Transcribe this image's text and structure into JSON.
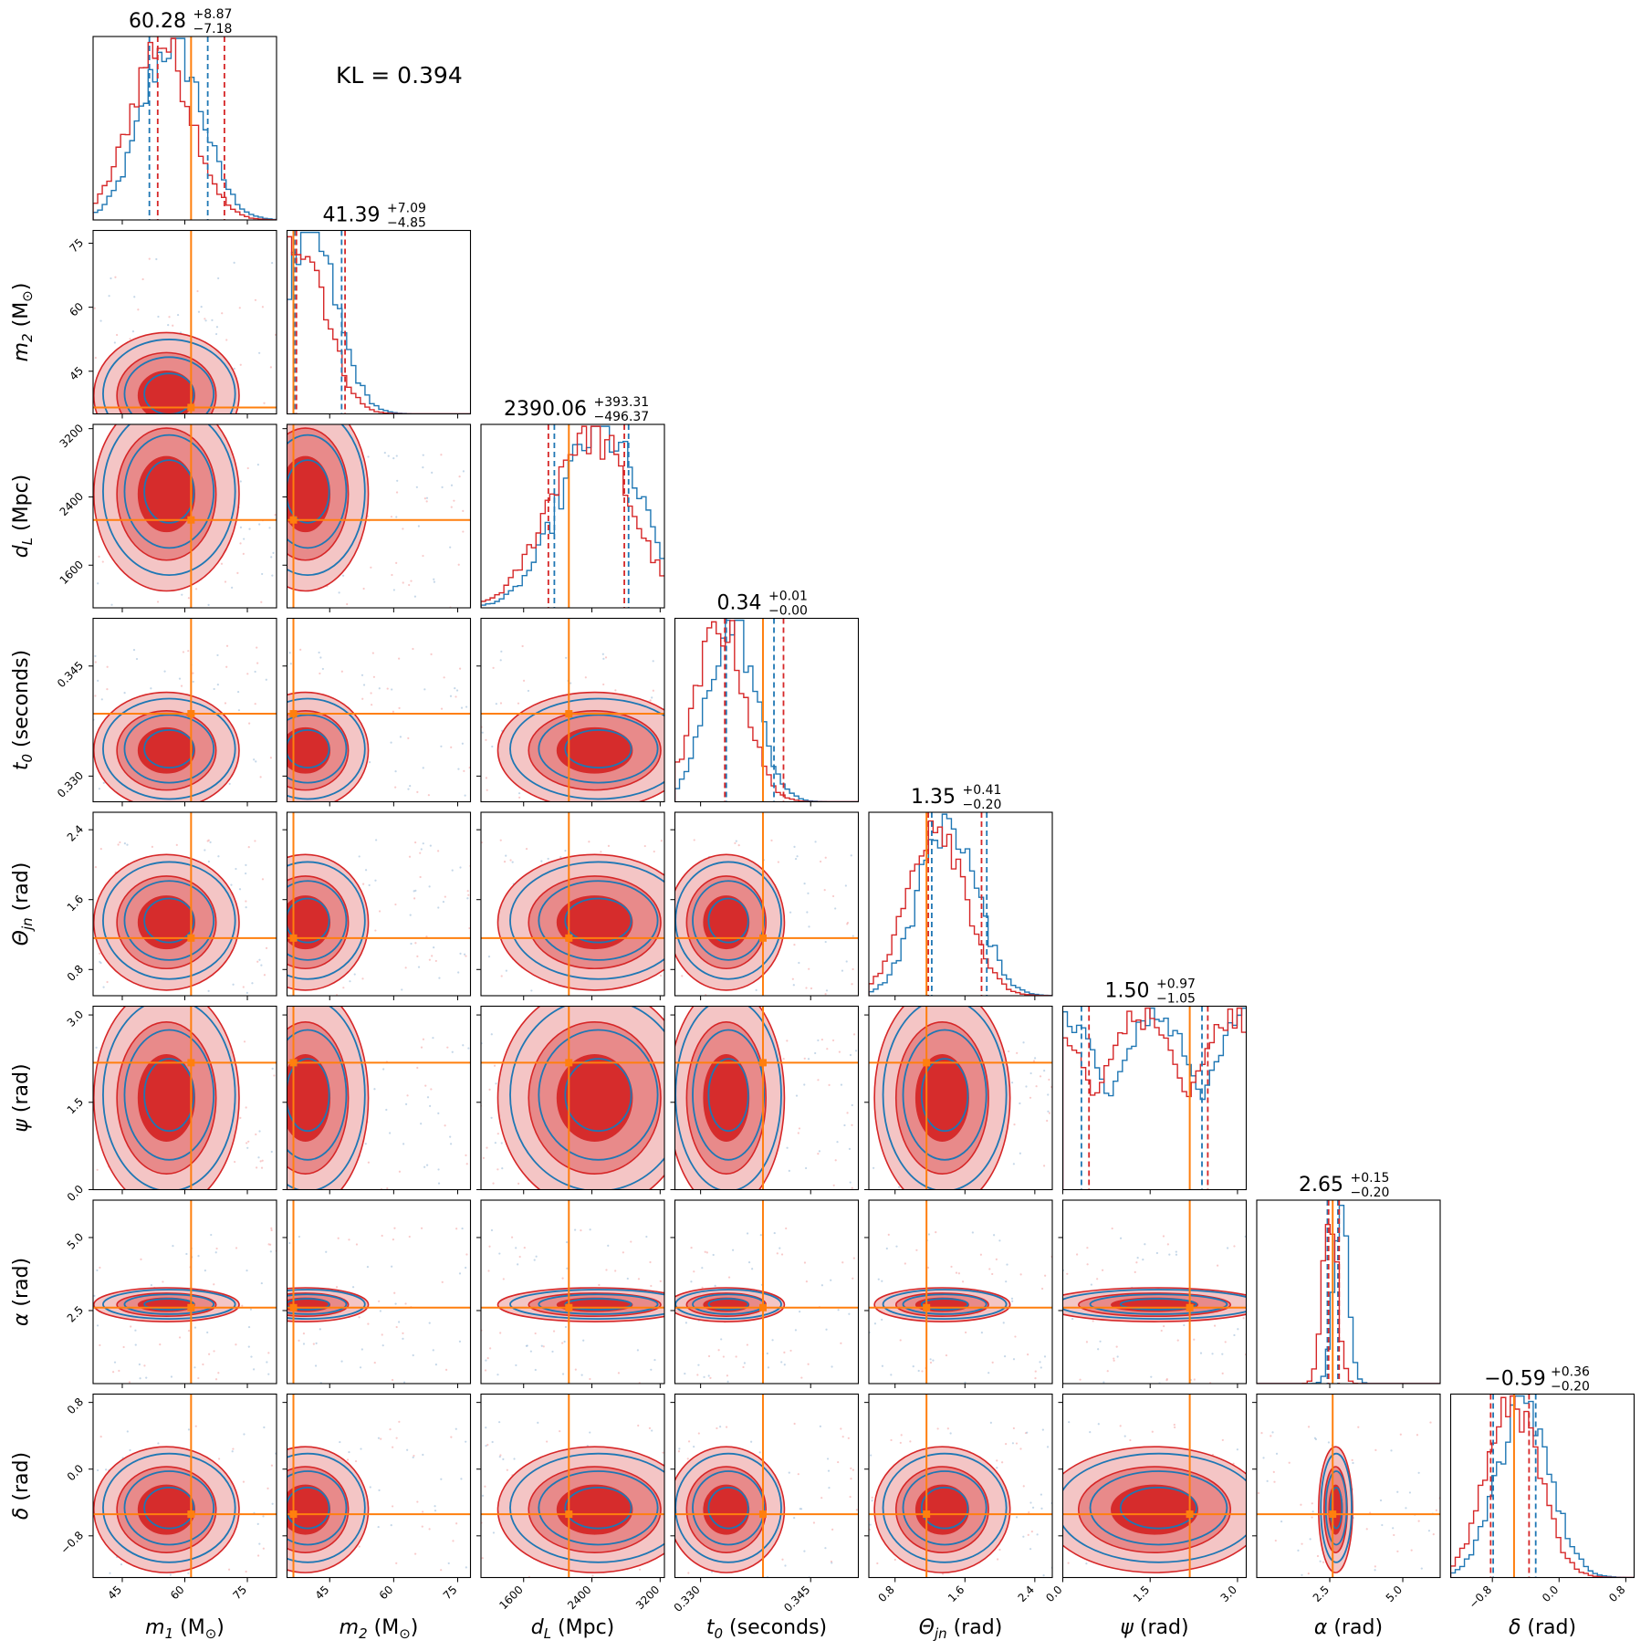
{
  "kl_text": "KL = 0.394",
  "colors": {
    "sample_a": "#1f77b4",
    "sample_b": "#d62728",
    "truth": "#ff7f0e"
  },
  "chart_data": {
    "type": "corner",
    "params": [
      {
        "key": "m1",
        "label_main": "m",
        "label_sub": "1",
        "label_unit": " (M",
        "label_unit_sub": "⊙",
        "label_tail": ")",
        "range": [
          38,
          82
        ],
        "ticks": [
          45,
          60,
          75
        ],
        "tick_labels": [
          "45",
          "60",
          "75"
        ],
        "truth": 61.5,
        "title_value": "60.28",
        "title_plus": "+8.87",
        "title_minus": "−7.18",
        "q_a": [
          51.5,
          65.5
        ],
        "q_b": [
          53.5,
          69.5
        ]
      },
      {
        "key": "m2",
        "label_main": "m",
        "label_sub": "2",
        "label_unit": " (M",
        "label_unit_sub": "⊙",
        "label_tail": ")",
        "range": [
          35,
          78
        ],
        "ticks": [
          45,
          60,
          75
        ],
        "tick_labels": [
          "45",
          "60",
          "75"
        ],
        "truth": 36.5,
        "title_value": "41.39",
        "title_plus": "+7.09",
        "title_minus": "−4.85",
        "q_a": [
          36.8,
          47.8
        ],
        "q_b": [
          37.2,
          48.6
        ]
      },
      {
        "key": "dl",
        "label_main": "d",
        "label_sub": "L",
        "label_unit": " (Mpc)",
        "label_unit_sub": "",
        "label_tail": "",
        "range": [
          1100,
          3250
        ],
        "ticks": [
          1600,
          2400,
          3200
        ],
        "tick_labels": [
          "1600",
          "2400",
          "3200"
        ],
        "truth": 2130,
        "title_value": "2390.06",
        "title_plus": "+393.31",
        "title_minus": "−496.37",
        "q_a": [
          1960,
          2830
        ],
        "q_b": [
          1890,
          2780
        ]
      },
      {
        "key": "t0",
        "label_main": "t",
        "label_sub": "0",
        "label_unit": " (seconds)",
        "label_unit_sub": "",
        "label_tail": "",
        "range": [
          0.3265,
          0.3515
        ],
        "ticks": [
          0.33,
          0.345
        ],
        "tick_labels": [
          "0.330",
          "0.345"
        ],
        "truth": 0.3385,
        "title_value": "0.34",
        "title_plus": "+0.01",
        "title_minus": "−0.00",
        "q_a": [
          0.3335,
          0.34
        ],
        "q_b": [
          0.3333,
          0.3413
        ]
      },
      {
        "key": "thetajn",
        "label_main": "Θ",
        "label_sub": "jn",
        "label_unit": " (rad)",
        "label_unit_sub": "",
        "label_tail": "",
        "range": [
          0.5,
          2.6
        ],
        "ticks": [
          0.8,
          1.6,
          2.4
        ],
        "tick_labels": [
          "0.8",
          "1.6",
          "2.4"
        ],
        "truth": 1.16,
        "title_value": "1.35",
        "title_plus": "+0.41",
        "title_minus": "−0.20",
        "q_a": [
          1.22,
          1.85
        ],
        "q_b": [
          1.18,
          1.79
        ]
      },
      {
        "key": "psi",
        "label_main": "ψ",
        "label_sub": "",
        "label_unit": " (rad)",
        "label_unit_sub": "",
        "label_tail": "",
        "range": [
          0.0,
          3.15
        ],
        "ticks": [
          0.0,
          1.5,
          3.0
        ],
        "tick_labels": [
          "0.0",
          "1.5",
          "3.0"
        ],
        "truth": 2.18,
        "title_value": "1.50",
        "title_plus": "+0.97",
        "title_minus": "−1.05",
        "q_a": [
          0.32,
          2.39
        ],
        "q_b": [
          0.45,
          2.49
        ]
      },
      {
        "key": "alpha",
        "label_main": "α",
        "label_sub": "",
        "label_unit": " (rad)",
        "label_unit_sub": "",
        "label_tail": "",
        "range": [
          0.0,
          6.28
        ],
        "ticks": [
          2.5,
          5.0
        ],
        "tick_labels": [
          "2.5",
          "5.0"
        ],
        "truth": 2.6,
        "title_value": "2.65",
        "title_plus": "+0.15",
        "title_minus": "−0.20",
        "q_a": [
          2.42,
          2.78
        ],
        "q_b": [
          2.46,
          2.82
        ]
      },
      {
        "key": "delta",
        "label_main": "δ",
        "label_sub": "",
        "label_unit": " (rad)",
        "label_unit_sub": "",
        "label_tail": "",
        "range": [
          -1.3,
          0.9
        ],
        "ticks": [
          -0.8,
          0.0,
          0.8
        ],
        "tick_labels": [
          "−0.8",
          "0.0",
          "0.8"
        ],
        "truth": -0.54,
        "title_value": "−0.59",
        "title_plus": "+0.36",
        "title_minus": "−0.20",
        "q_a": [
          -0.79,
          -0.28
        ],
        "q_b": [
          -0.82,
          -0.36
        ]
      }
    ]
  }
}
